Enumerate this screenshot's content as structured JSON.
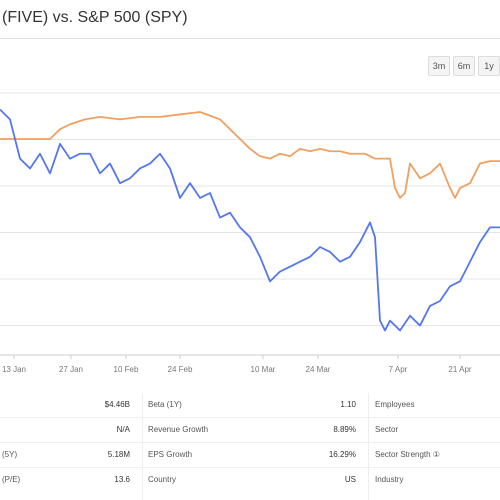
{
  "title": "(FIVE) vs. S&P 500 (SPY)",
  "range_buttons": [
    "3m",
    "6m",
    "1y"
  ],
  "chart_data": {
    "type": "line",
    "x_ticks": [
      "13 Jan",
      "27 Jan",
      "10 Feb",
      "24 Feb",
      "10 Mar",
      "24 Mar",
      "7 Apr",
      "21 Apr"
    ],
    "series": [
      {
        "color": "#f0a060",
        "x": [
          0,
          3,
          6,
          10,
          12,
          14,
          17,
          20,
          24,
          28,
          32,
          36,
          40,
          44,
          46,
          48,
          50,
          52,
          54,
          56,
          58,
          60,
          62,
          64,
          66,
          68,
          70,
          73,
          75,
          78,
          79,
          80,
          81,
          82,
          84,
          86,
          88,
          90,
          91,
          92,
          94,
          96,
          98,
          100
        ],
        "y": [
          -1,
          -1,
          -1,
          -1,
          1,
          2,
          3,
          3.5,
          3,
          3.5,
          3.5,
          4,
          4.5,
          3,
          1,
          -1,
          -3,
          -4.5,
          -5,
          -4,
          -4.5,
          -3,
          -3.5,
          -3,
          -3.5,
          -3.5,
          -4,
          -4,
          -5,
          -5,
          -11,
          -13,
          -12,
          -6,
          -9,
          -8,
          -6,
          -11,
          -13,
          -11,
          -10,
          -6,
          -5.5,
          -5.5
        ]
      },
      {
        "color": "#5577ee",
        "x": [
          0,
          2,
          3,
          4,
          6,
          8,
          10,
          12,
          14,
          16,
          18,
          20,
          22,
          24,
          26,
          28,
          30,
          32,
          34,
          36,
          38,
          40,
          42,
          44,
          46,
          48,
          50,
          52,
          54,
          56,
          58,
          60,
          62,
          64,
          66,
          68,
          70,
          72,
          74,
          75,
          76,
          77,
          78,
          80,
          82,
          84,
          86,
          88,
          90,
          92,
          94,
          96,
          98,
          100
        ],
        "y": [
          5,
          3,
          -1,
          -5,
          -7,
          -4,
          -8,
          -2,
          -5,
          -4,
          -4,
          -8,
          -6,
          -10,
          -9,
          -7,
          -6,
          -4,
          -7,
          -13,
          -10,
          -13,
          -12,
          -17,
          -16,
          -19,
          -21,
          -25,
          -30,
          -28,
          -27,
          -26,
          -25,
          -23,
          -24,
          -26,
          -25,
          -22,
          -18,
          -21,
          -38,
          -40,
          -38,
          -40,
          -37,
          -39,
          -35,
          -34,
          -31,
          -30,
          -26,
          -22,
          -19,
          -19
        ]
      }
    ],
    "ylim": [
      -45,
      10
    ],
    "grid": true
  },
  "stats": {
    "rows": [
      [
        {
          "label": "",
          "value": "$4.46B"
        },
        {
          "label": "Beta (1Y)",
          "value": "1.10"
        },
        {
          "label": "Employees",
          "value": ""
        }
      ],
      [
        {
          "label": "",
          "value": "N/A"
        },
        {
          "label": "Revenue Growth",
          "value": "8.89%"
        },
        {
          "label": "Sector",
          "value": ""
        }
      ],
      [
        {
          "label": "(5Y)",
          "value": "5.18M"
        },
        {
          "label": "EPS Growth",
          "value": "16.29%"
        },
        {
          "label": "Sector Strength ①",
          "value": ""
        }
      ],
      [
        {
          "label": "(P/E)",
          "value": "13.6"
        },
        {
          "label": "Country",
          "value": "US"
        },
        {
          "label": "Industry",
          "value": ""
        }
      ]
    ]
  }
}
